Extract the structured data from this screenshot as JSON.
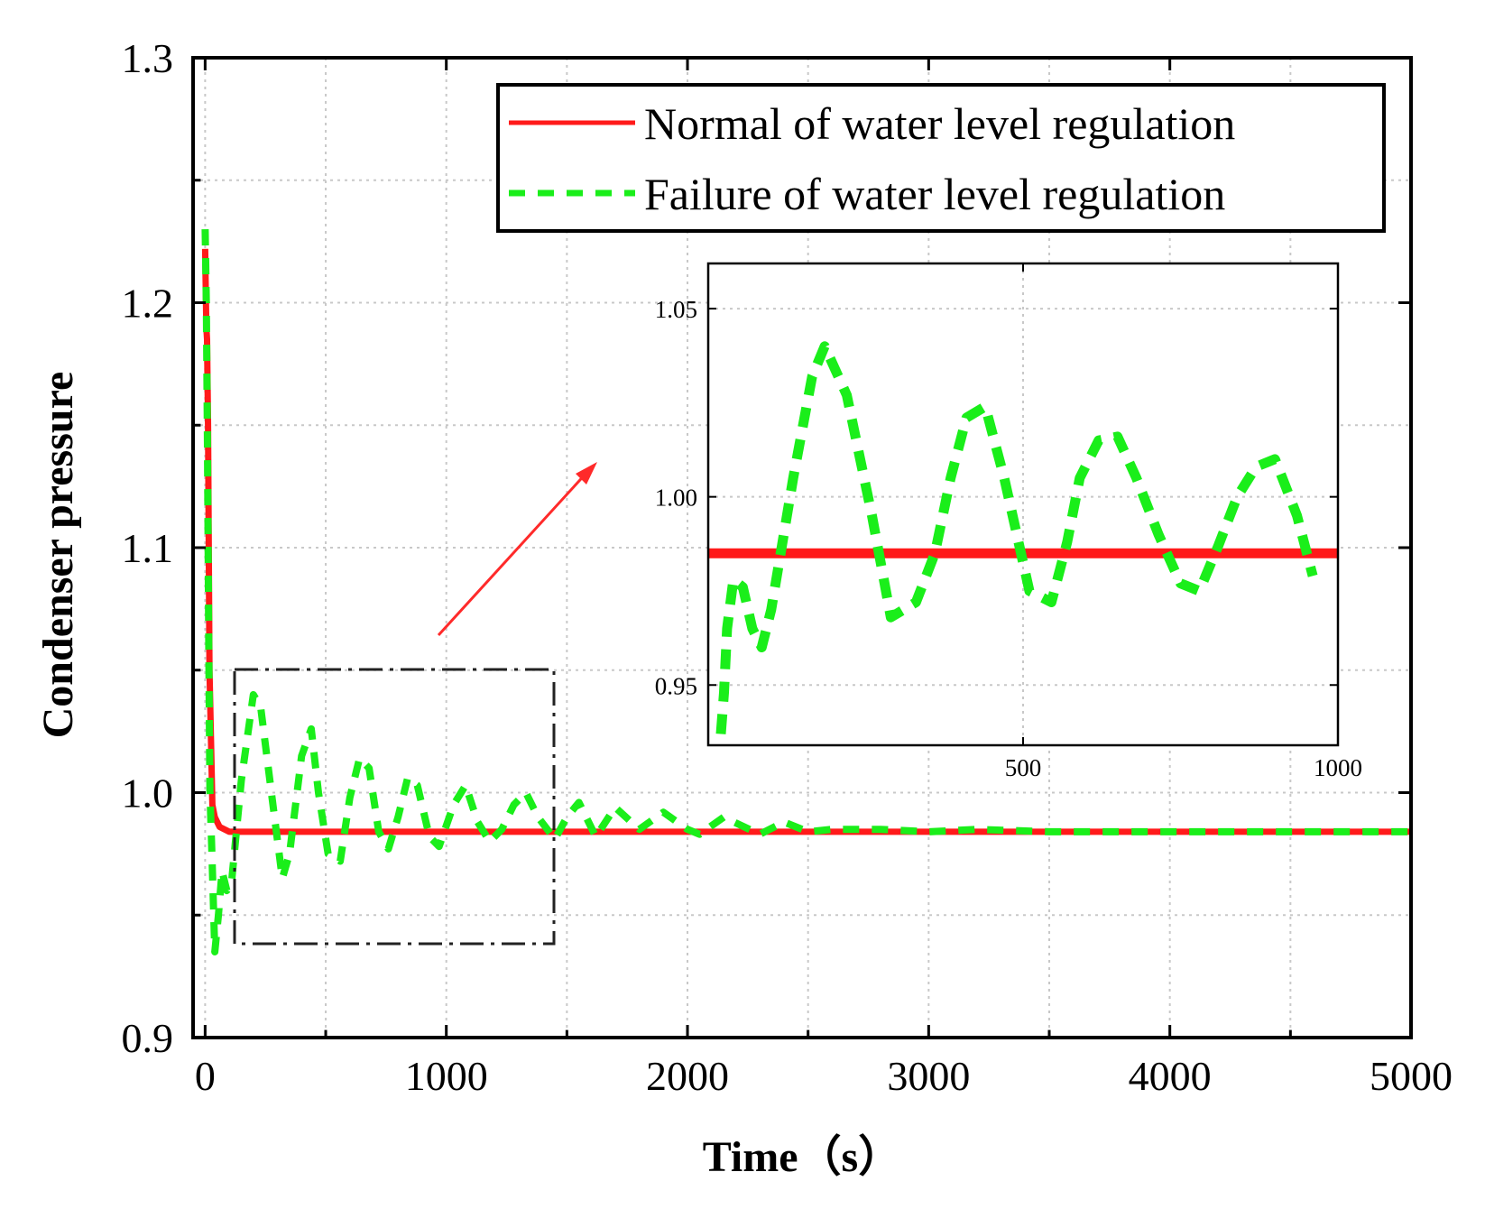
{
  "chart_data": [
    {
      "id": "main",
      "type": "line",
      "title": "",
      "xlabel": "Time（s）",
      "ylabel": "Condenser pressure",
      "xlim": [
        -50,
        5000
      ],
      "ylim": [
        0.9,
        1.3
      ],
      "xticks": [
        0,
        1000,
        2000,
        3000,
        4000,
        5000
      ],
      "xtick_labels": [
        "0",
        "1000",
        "2000",
        "3000",
        "4000",
        "5000"
      ],
      "yticks": [
        0.9,
        1.0,
        1.1,
        1.2,
        1.3
      ],
      "ytick_labels": [
        "0.9",
        "1.0",
        "1.1",
        "1.2",
        "1.3"
      ],
      "grid": true,
      "legend": {
        "placement": "top-right"
      },
      "series": [
        {
          "name": "Normal of water level regulation",
          "color": "#ff1a1a",
          "style": "solid",
          "x": [
            0,
            5,
            8,
            12,
            18,
            30,
            40,
            60,
            100,
            500,
            1000,
            2000,
            3000,
            4000,
            5000
          ],
          "y": [
            1.222,
            1.19,
            1.185,
            1.15,
            1.05,
            0.995,
            0.99,
            0.986,
            0.984,
            0.984,
            0.984,
            0.984,
            0.984,
            0.984,
            0.984
          ]
        },
        {
          "name": "Failure of water level regulation",
          "color": "#1aee1a",
          "style": "dashed",
          "x": [
            0,
            5,
            10,
            15,
            20,
            28,
            40,
            55,
            70,
            90,
            110,
            150,
            200,
            230,
            280,
            320,
            350,
            400,
            440,
            470,
            510,
            560,
            600,
            640,
            680,
            720,
            760,
            800,
            840,
            880,
            930,
            970,
            1030,
            1080,
            1130,
            1180,
            1230,
            1280,
            1330,
            1380,
            1450,
            1500,
            1550,
            1620,
            1700,
            1800,
            1900,
            2000,
            2050,
            2150,
            2300,
            2400,
            2500,
            2600,
            2800,
            3000,
            3200,
            3500,
            4000,
            4500,
            5000
          ],
          "y": [
            1.23,
            1.2,
            1.14,
            1.06,
            1.0,
            0.975,
            0.935,
            0.95,
            0.968,
            0.96,
            0.964,
            1.005,
            1.04,
            1.035,
            0.996,
            0.965,
            0.975,
            1.015,
            1.026,
            1.0,
            0.975,
            0.972,
            0.998,
            1.014,
            1.01,
            0.984,
            0.977,
            0.99,
            1.006,
            1.003,
            0.982,
            0.978,
            0.995,
            1.003,
            0.988,
            0.98,
            0.985,
            0.995,
            1.0,
            0.99,
            0.981,
            0.99,
            0.996,
            0.982,
            0.994,
            0.985,
            0.992,
            0.985,
            0.983,
            0.99,
            0.983,
            0.988,
            0.984,
            0.985,
            0.985,
            0.984,
            0.985,
            0.984,
            0.984,
            0.984,
            0.984
          ]
        }
      ]
    },
    {
      "id": "inset",
      "type": "line",
      "title": "",
      "xlabel": "",
      "ylabel": "",
      "xlim": [
        0,
        1000
      ],
      "ylim": [
        0.934,
        1.062
      ],
      "xticks": [
        500,
        1000
      ],
      "xtick_labels": [
        "500",
        "1000"
      ],
      "yticks": [
        0.95,
        1.0,
        1.05
      ],
      "ytick_labels": [
        "0.95",
        "1.00",
        "1.05"
      ],
      "grid": true,
      "series": [
        {
          "name": "Normal of water level regulation",
          "color": "#ff1a1a",
          "style": "solid",
          "x": [
            0,
            1000
          ],
          "y": [
            0.985,
            0.985
          ]
        },
        {
          "name": "Failure of water level regulation",
          "color": "#1aee1a",
          "style": "dashed",
          "x": [
            20,
            25,
            30,
            40,
            55,
            70,
            85,
            100,
            115,
            135,
            165,
            185,
            220,
            260,
            290,
            330,
            360,
            385,
            410,
            440,
            470,
            510,
            545,
            570,
            590,
            620,
            650,
            680,
            715,
            750,
            780,
            810,
            840,
            870,
            900,
            935,
            960
          ],
          "y": [
            0.937,
            0.948,
            0.965,
            0.978,
            0.976,
            0.965,
            0.96,
            0.97,
            0.985,
            1.005,
            1.032,
            1.04,
            1.027,
            0.995,
            0.968,
            0.972,
            0.985,
            1.005,
            1.021,
            1.024,
            1.005,
            0.975,
            0.972,
            0.988,
            1.005,
            1.015,
            1.016,
            1.005,
            0.99,
            0.977,
            0.975,
            0.987,
            1.0,
            1.008,
            1.01,
            0.995,
            0.979
          ]
        }
      ]
    }
  ],
  "legend_entries": [
    "Normal of water level regulation",
    "Failure of water level regulation"
  ]
}
